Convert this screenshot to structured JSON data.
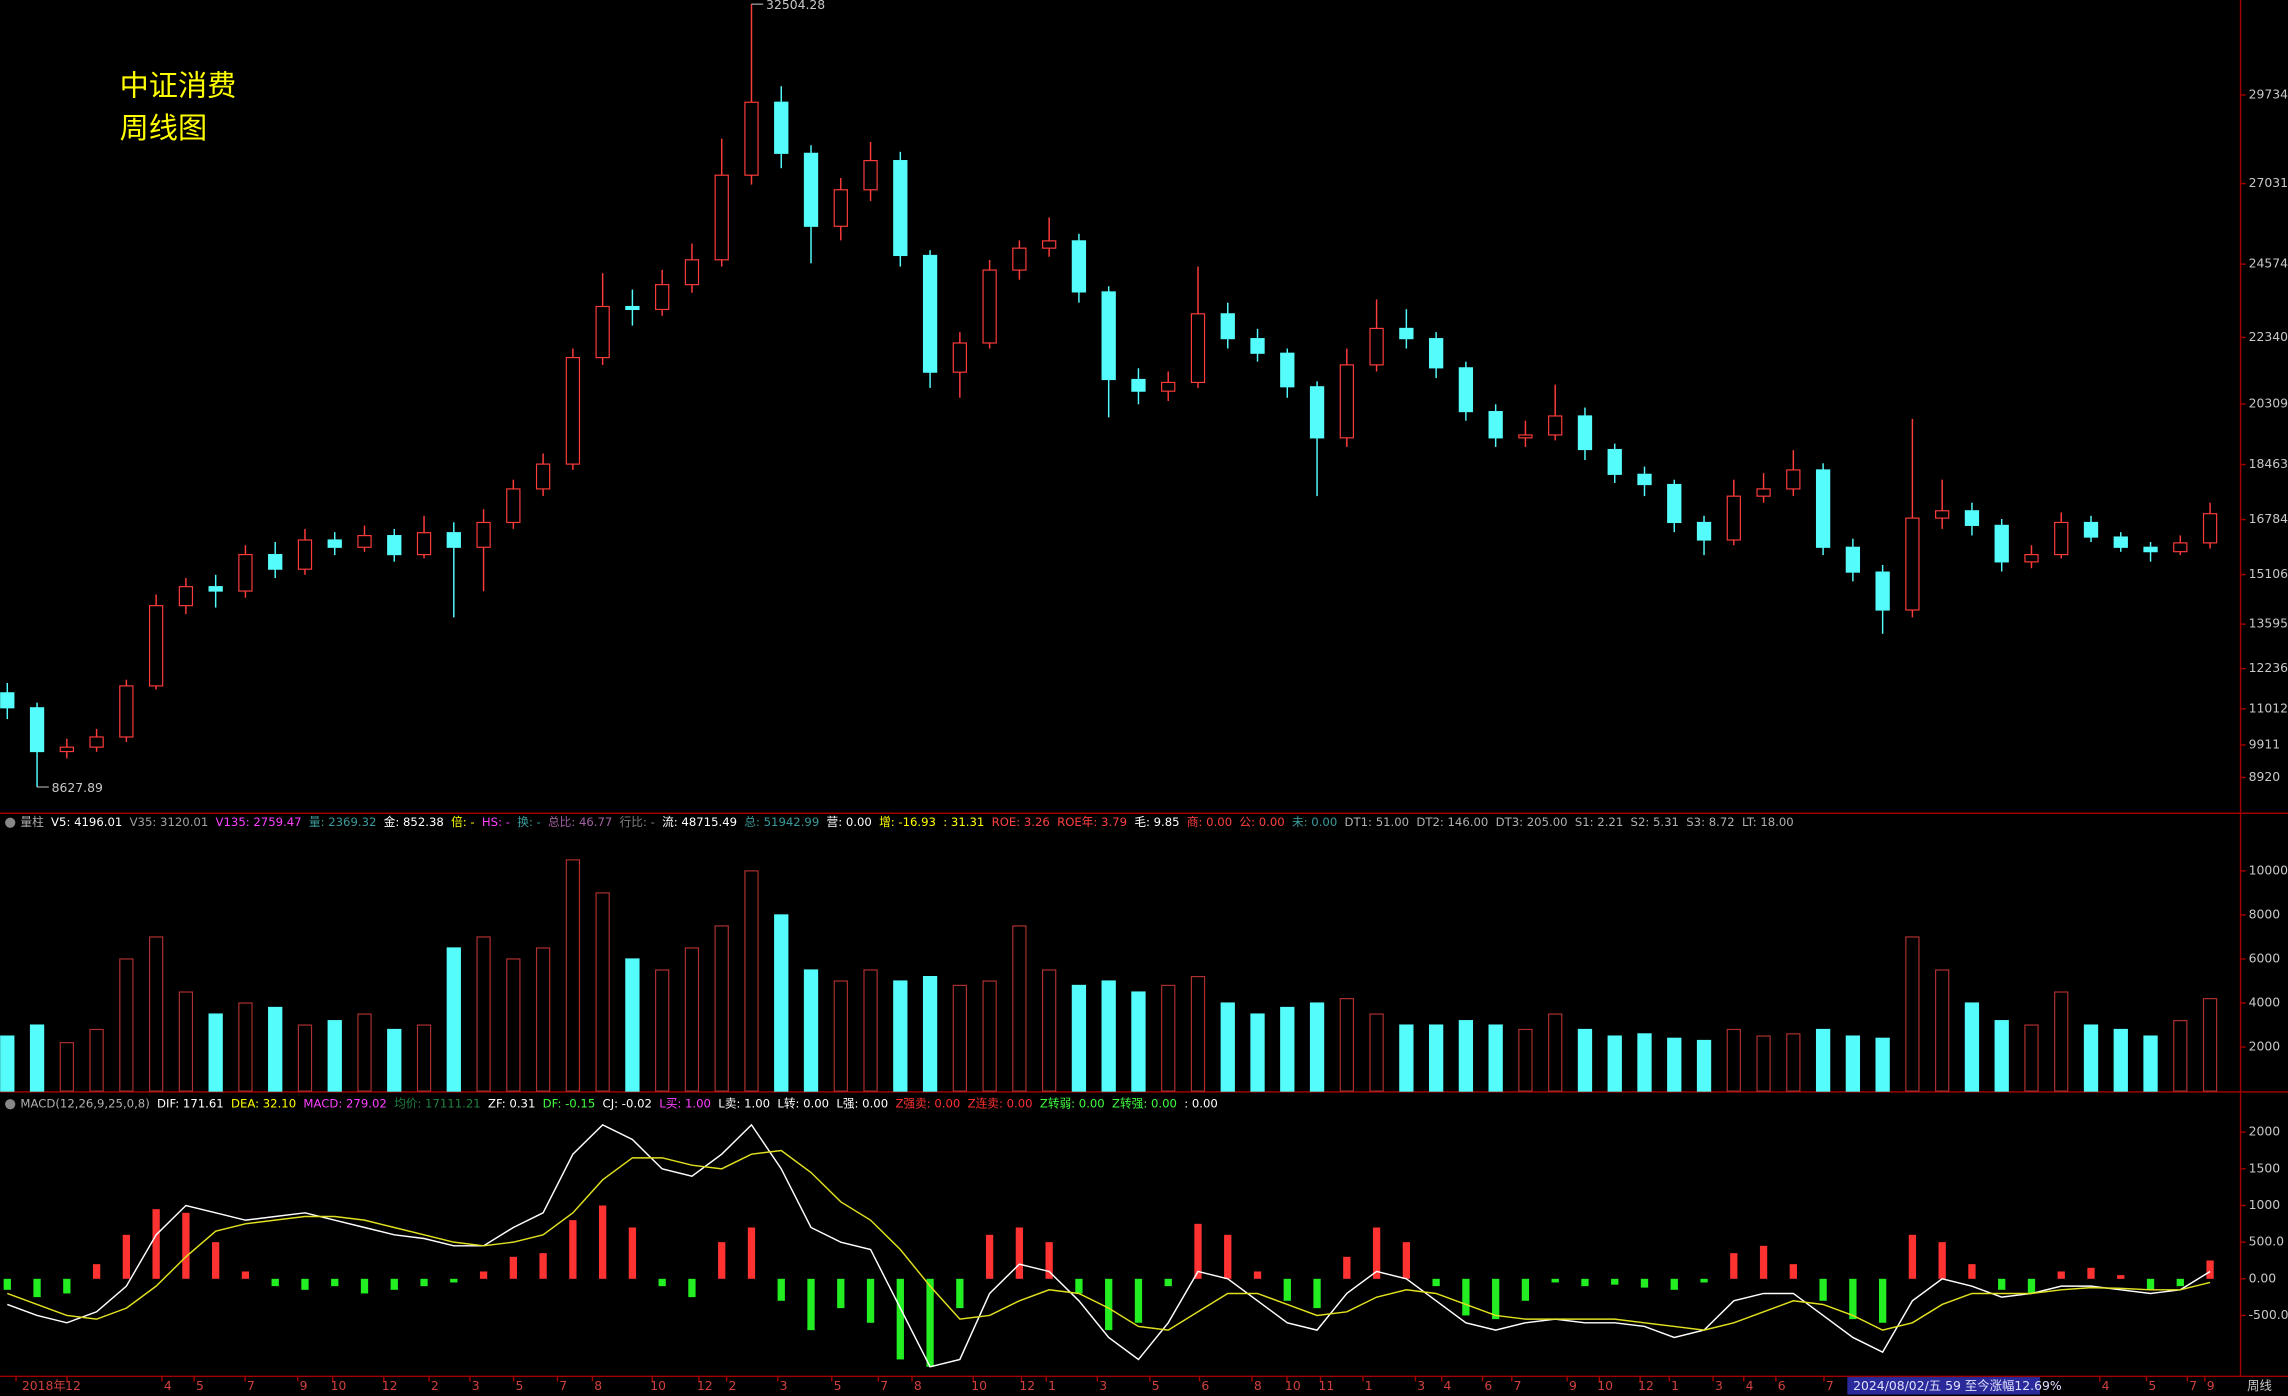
{
  "chart_data": [
    {
      "type": "candlestick",
      "title": "中证消费",
      "subtitle": "周线图",
      "up_color": "#ff3c3c",
      "down_color": "#54fcfc",
      "ylim": [
        7850,
        32630
      ],
      "yticks": [
        8920,
        9911,
        11012,
        12236,
        13595,
        15106,
        16784,
        18463,
        20309,
        22340,
        24574,
        27031,
        29734
      ],
      "ohlc": [
        [
          11500,
          11800,
          10700,
          11044
        ],
        [
          11044,
          11200,
          8627.89,
          9709
        ],
        [
          9709,
          10100,
          9500,
          9843
        ],
        [
          9843,
          10400,
          9700,
          10154
        ],
        [
          10154,
          11900,
          10000,
          11712
        ],
        [
          11712,
          14500,
          11600,
          14159
        ],
        [
          14159,
          15000,
          13900,
          14738
        ],
        [
          14738,
          15100,
          14100,
          14604
        ],
        [
          14604,
          16000,
          14400,
          15716
        ],
        [
          15716,
          16100,
          15000,
          15271
        ],
        [
          15271,
          16500,
          15100,
          16161
        ],
        [
          16161,
          16400,
          15700,
          15939
        ],
        [
          15939,
          16600,
          15800,
          16295
        ],
        [
          16295,
          16500,
          15500,
          15716
        ],
        [
          15716,
          16900,
          15600,
          16384
        ],
        [
          16384,
          16700,
          13800,
          15939
        ],
        [
          15939,
          17100,
          14600,
          16696
        ],
        [
          16696,
          18000,
          16500,
          17719
        ],
        [
          17719,
          18800,
          17500,
          18476
        ],
        [
          18476,
          22000,
          18300,
          21724
        ],
        [
          21724,
          24300,
          21500,
          23282
        ],
        [
          23282,
          23800,
          22700,
          23193
        ],
        [
          23193,
          24400,
          23000,
          23949
        ],
        [
          23949,
          25200,
          23700,
          24706
        ],
        [
          24706,
          28400,
          24500,
          27287
        ],
        [
          27287,
          32504.28,
          27000,
          29512
        ],
        [
          29512,
          30000,
          27500,
          27954
        ],
        [
          27954,
          28200,
          24600,
          25729
        ],
        [
          25729,
          27200,
          25300,
          26842
        ],
        [
          26842,
          28300,
          26500,
          27732
        ],
        [
          27732,
          28000,
          24500,
          24839
        ],
        [
          24839,
          25000,
          20800,
          21279
        ],
        [
          21279,
          22500,
          20500,
          22169
        ],
        [
          22169,
          24700,
          22000,
          24394
        ],
        [
          24394,
          25300,
          24100,
          25062
        ],
        [
          25062,
          26000,
          24800,
          25284
        ],
        [
          25284,
          25500,
          23400,
          23727
        ],
        [
          23727,
          23900,
          19900,
          21056
        ],
        [
          21056,
          21400,
          20300,
          20700
        ],
        [
          20700,
          21300,
          20400,
          20967
        ],
        [
          20967,
          24500,
          20800,
          23059
        ],
        [
          23059,
          23400,
          22000,
          22302
        ],
        [
          22302,
          22600,
          21600,
          21857
        ],
        [
          21857,
          22000,
          20500,
          20834
        ],
        [
          20834,
          21000,
          17500,
          19276
        ],
        [
          19276,
          22000,
          19000,
          21502
        ],
        [
          21502,
          23500,
          21300,
          22614
        ],
        [
          22614,
          23200,
          22000,
          22302
        ],
        [
          22302,
          22500,
          21100,
          21412
        ],
        [
          21412,
          21600,
          19800,
          20077
        ],
        [
          20077,
          20300,
          19000,
          19276
        ],
        [
          19276,
          19800,
          19000,
          19365
        ],
        [
          19365,
          20900,
          19200,
          19944
        ],
        [
          19944,
          20200,
          18600,
          18920
        ],
        [
          18920,
          19100,
          17900,
          18164
        ],
        [
          18164,
          18400,
          17500,
          17853
        ],
        [
          17853,
          18000,
          16400,
          16696
        ],
        [
          16696,
          16900,
          15700,
          16161
        ],
        [
          16161,
          18000,
          16000,
          17498
        ],
        [
          17498,
          18200,
          17300,
          17719
        ],
        [
          17719,
          18900,
          17500,
          18298
        ],
        [
          18298,
          18500,
          15700,
          15939
        ],
        [
          15939,
          16200,
          14900,
          15182
        ],
        [
          15182,
          15400,
          13300,
          14026
        ],
        [
          14026,
          19855,
          13800,
          16829
        ],
        [
          16829,
          18000,
          16500,
          17052
        ],
        [
          17052,
          17300,
          16300,
          16607
        ],
        [
          16607,
          16800,
          15200,
          15494
        ],
        [
          15494,
          16000,
          15300,
          15716
        ],
        [
          15716,
          17000,
          15600,
          16696
        ],
        [
          16696,
          16900,
          16100,
          16251
        ],
        [
          16251,
          16400,
          15800,
          15939
        ],
        [
          15939,
          16100,
          15500,
          15805
        ],
        [
          15805,
          16300,
          15700,
          16073
        ],
        [
          16073,
          17300,
          15900,
          16963
        ]
      ]
    },
    {
      "type": "volume",
      "header": [
        {
          "text": "量柱",
          "color": "#b0b0b0"
        },
        {
          "text": "V5: 4196.01",
          "color": "#ffffff"
        },
        {
          "text": "V35: 3120.01",
          "color": "#a0a0a0"
        },
        {
          "text": "V135: 2759.47",
          "color": "#ff40ff"
        },
        {
          "text": "量: 2369.32",
          "color": "#3a9a9a"
        },
        {
          "text": "金: 852.38",
          "color": "#ffffff"
        },
        {
          "text": "倍: -",
          "color": "#ffff00"
        },
        {
          "text": "HS: -",
          "color": "#ff40ff"
        },
        {
          "text": "换: -",
          "color": "#3a9a9a"
        },
        {
          "text": "总比: 46.77",
          "color": "#a060a0"
        },
        {
          "text": "行比: -",
          "color": "#808080"
        },
        {
          "text": "流: 48715.49",
          "color": "#ffffff"
        },
        {
          "text": "总: 51942.99",
          "color": "#3a9a9a"
        },
        {
          "text": "营: 0.00",
          "color": "#ffffff"
        },
        {
          "text": "增: -16.93",
          "color": "#ffff00"
        },
        {
          "text": ": 31.31",
          "color": "#ffff00"
        },
        {
          "text": "ROE: 3.26",
          "color": "#ff4040"
        },
        {
          "text": "ROE年: 3.79",
          "color": "#ff4040"
        },
        {
          "text": "毛: 9.85",
          "color": "#ffffff"
        },
        {
          "text": "商: 0.00",
          "color": "#ff4040"
        },
        {
          "text": "公: 0.00",
          "color": "#ff4040"
        },
        {
          "text": "未: 0.00",
          "color": "#3a9a9a"
        },
        {
          "text": "DT1: 51.00",
          "color": "#b0b0b0"
        },
        {
          "text": "DT2: 146.00",
          "color": "#b0b0b0"
        },
        {
          "text": "DT3: 205.00",
          "color": "#b0b0b0"
        },
        {
          "text": "S1: 2.21",
          "color": "#b0b0b0"
        },
        {
          "text": "S2: 5.31",
          "color": "#b0b0b0"
        },
        {
          "text": "S3: 8.72",
          "color": "#b0b0b0"
        },
        {
          "text": "LT: 18.00",
          "color": "#b0b0b0"
        }
      ],
      "ylim": [
        0,
        12650
      ],
      "yticks": [
        2000,
        4000,
        6000,
        8000,
        10000
      ],
      "values": [
        2500,
        3000,
        2200,
        2800,
        6000,
        7000,
        4500,
        3500,
        4000,
        3800,
        3000,
        3200,
        3500,
        2800,
        3000,
        6500,
        7000,
        6000,
        6500,
        10500,
        9000,
        6000,
        5500,
        6500,
        7500,
        10000,
        8000,
        5500,
        5000,
        5500,
        5000,
        5200,
        4800,
        5000,
        7500,
        5500,
        4800,
        5000,
        4500,
        4800,
        5200,
        4000,
        3500,
        3800,
        4000,
        4200,
        3500,
        3000,
        3000,
        3200,
        3000,
        2800,
        3500,
        2800,
        2500,
        2600,
        2400,
        2300,
        2800,
        2500,
        2600,
        2800,
        2500,
        2400,
        7000,
        5500,
        4000,
        3200,
        3000,
        4500,
        3000,
        2800,
        2500,
        3200,
        4200
      ]
    },
    {
      "type": "macd",
      "pos_color": "#ff3232",
      "neg_color": "#22ee22",
      "dif_color": "#ffffff",
      "dea_color": "#e0e020",
      "header": [
        {
          "text": "MACD(12,26,9,25,0,8)",
          "color": "#b0b0b0"
        },
        {
          "text": "DIF: 171.61",
          "color": "#ffffff"
        },
        {
          "text": "DEA: 32.10",
          "color": "#ffff00"
        },
        {
          "text": "MACD: 279.02",
          "color": "#ff40ff"
        },
        {
          "text": "均价: 17111.21",
          "color": "#208040"
        },
        {
          "text": "ZF: 0.31",
          "color": "#ffffff"
        },
        {
          "text": "DF: -0.15",
          "color": "#40ff40"
        },
        {
          "text": "CJ: -0.02",
          "color": "#ffffff"
        },
        {
          "text": "L买: 1.00",
          "color": "#ff40ff"
        },
        {
          "text": "L卖: 1.00",
          "color": "#ffffff"
        },
        {
          "text": "L转: 0.00",
          "color": "#ffffff"
        },
        {
          "text": "L强: 0.00",
          "color": "#ffffff"
        },
        {
          "text": "Z强卖: 0.00",
          "color": "#ff3030"
        },
        {
          "text": "Z连卖: 0.00",
          "color": "#ff3030"
        },
        {
          "text": "Z转弱: 0.00",
          "color": "#40ff40"
        },
        {
          "text": "Z转强: 0.00",
          "color": "#40ff40"
        },
        {
          "text": ": 0.00",
          "color": "#ffffff"
        }
      ],
      "ylim": [
        -1320,
        2560
      ],
      "yticks": [
        {
          "value": -500,
          "label": "-500.0"
        },
        {
          "value": 0,
          "label": "0.00"
        },
        {
          "value": 500,
          "label": "500.0"
        },
        1000,
        1500,
        2000
      ],
      "values": [
        -150,
        -250,
        -200,
        200,
        600,
        950,
        900,
        500,
        100,
        -100,
        -150,
        -100,
        -200,
        -150,
        -100,
        -50,
        100,
        300,
        350,
        800,
        1000,
        700,
        -100,
        -250,
        500,
        700,
        -300,
        -700,
        -400,
        -600,
        -1100,
        -1200,
        -400,
        600,
        700,
        500,
        -200,
        -700,
        -600,
        -100,
        750,
        600,
        100,
        -300,
        -400,
        300,
        700,
        500,
        -100,
        -500,
        -550,
        -300,
        -50,
        -100,
        -80,
        -120,
        -150,
        -50,
        350,
        450,
        200,
        -300,
        -550,
        -600,
        600,
        500,
        200,
        -150,
        -200,
        100,
        150,
        50,
        -150,
        -100,
        250
      ],
      "dif": [
        -350,
        -500,
        -600,
        -450,
        -100,
        600,
        1000,
        900,
        800,
        850,
        900,
        800,
        700,
        600,
        550,
        450,
        450,
        700,
        900,
        1700,
        2100,
        1900,
        1500,
        1400,
        1700,
        2100,
        1500,
        700,
        500,
        400,
        -400,
        -1200,
        -1100,
        -200,
        200,
        100,
        -300,
        -800,
        -1100,
        -600,
        100,
        0,
        -300,
        -600,
        -700,
        -200,
        100,
        0,
        -300,
        -600,
        -700,
        -600,
        -550,
        -600,
        -600,
        -650,
        -800,
        -700,
        -300,
        -200,
        -200,
        -500,
        -800,
        -1000,
        -300,
        0,
        -100,
        -250,
        -200,
        -100,
        -100,
        -150,
        -200,
        -150,
        100
      ],
      "dea": [
        -200,
        -350,
        -500,
        -550,
        -400,
        -100,
        300,
        650,
        750,
        800,
        850,
        850,
        800,
        700,
        600,
        500,
        450,
        500,
        600,
        900,
        1350,
        1650,
        1650,
        1550,
        1500,
        1700,
        1750,
        1450,
        1050,
        800,
        400,
        -100,
        -550,
        -500,
        -300,
        -150,
        -200,
        -400,
        -650,
        -700,
        -450,
        -200,
        -200,
        -350,
        -500,
        -450,
        -250,
        -150,
        -200,
        -350,
        -500,
        -550,
        -550,
        -550,
        -550,
        -600,
        -650,
        -700,
        -600,
        -450,
        -300,
        -350,
        -500,
        -700,
        -600,
        -350,
        -200,
        -200,
        -200,
        -150,
        -120,
        -130,
        -150,
        -150,
        -50
      ]
    }
  ],
  "x_axis": {
    "labels": [
      "2018年",
      "12",
      "4",
      "5",
      "7",
      "9",
      "10",
      "12",
      "2",
      "3",
      "5",
      "7",
      "8",
      "10",
      "12",
      "2",
      "3",
      "5",
      "7",
      "8",
      "10",
      "12",
      "1",
      "3",
      "5",
      "6",
      "8",
      "10",
      "11",
      "1",
      "3",
      "4",
      "6",
      "7",
      "9",
      "10",
      "12",
      "1",
      "3",
      "4",
      "6",
      "7",
      "4",
      "5",
      "7",
      "9"
    ],
    "highlight": "2024/08/02/五 59 至今涨幅12.69%",
    "period": "周线"
  }
}
